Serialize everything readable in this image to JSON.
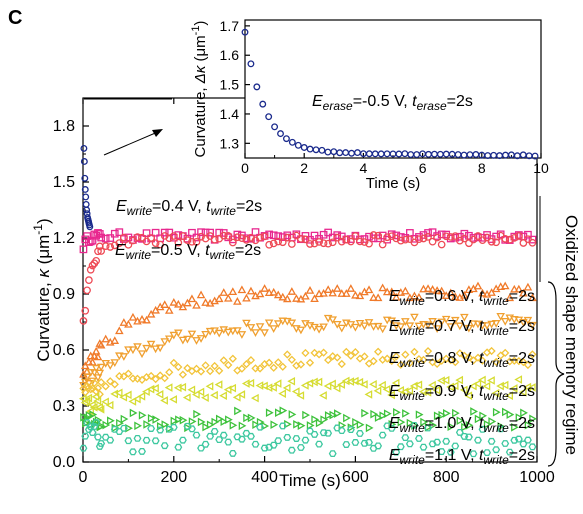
{
  "panel_label": "C",
  "chart_data": [
    {
      "type": "scatter",
      "xlabel": "Time (s)",
      "ylabel": "Curvature, κ (μm⁻¹)",
      "ylabel_parts": {
        "main": "Curvature, ",
        "symbol": "κ",
        "unit": " (μm",
        "exp": "-1",
        "close": ")"
      },
      "xlim": [
        0,
        1000
      ],
      "ylim": [
        0.0,
        1.95
      ],
      "x_ticks": [
        0,
        200,
        400,
        600,
        800,
        1000
      ],
      "x_tick_labels": [
        "0",
        "200",
        "400",
        "600",
        "800",
        "1000"
      ],
      "y_ticks": [
        0.0,
        0.3,
        0.6,
        0.9,
        1.2,
        1.5,
        1.8
      ],
      "y_tick_labels": [
        "0.0",
        "0.3",
        "0.6",
        "0.9",
        "1.2",
        "1.5",
        "1.8"
      ],
      "right_annotation": "Oxidized  shape memory regime",
      "erase_spike": {
        "color": "#1a2a8c",
        "marker": "circle",
        "x": [
          2,
          3,
          4,
          5,
          6,
          7,
          8,
          9,
          10,
          11,
          12,
          13,
          14,
          15
        ],
        "y": [
          1.68,
          1.61,
          1.52,
          1.46,
          1.42,
          1.38,
          1.35,
          1.33,
          1.31,
          1.3,
          1.29,
          1.28,
          1.27,
          1.26
        ]
      },
      "series": [
        {
          "write_label": "write",
          "E": "0.4 V",
          "t": "2s",
          "color": "#e8288f",
          "marker": "square",
          "start": 1.15,
          "plateau": 1.21,
          "tau": 8,
          "noise": 0.01
        },
        {
          "write_label": "write",
          "E": "0.5 V",
          "t": "2s",
          "color": "#ee4a55",
          "marker": "circle",
          "start": 0.72,
          "plateau": 1.19,
          "tau": 18,
          "noise": 0.012
        },
        {
          "write_label": "write",
          "E": "0.6 V",
          "t": "2s",
          "color": "#f07a2a",
          "marker": "triangle-up",
          "start": 0.48,
          "plateau": 0.91,
          "tau": 110,
          "noise": 0.015
        },
        {
          "write_label": "write",
          "E": "0.7 V",
          "t": "2s",
          "color": "#f0a030",
          "marker": "triangle-down",
          "start": 0.42,
          "plateau": 0.75,
          "tau": 160,
          "noise": 0.015
        },
        {
          "write_label": "write",
          "E": "0.8 V",
          "t": "2s",
          "color": "#f2c43a",
          "marker": "diamond",
          "start": 0.36,
          "plateau": 0.56,
          "tau": 180,
          "noise": 0.018
        },
        {
          "write_label": "write",
          "E": "0.9 V",
          "t": "2s",
          "color": "#d6dc32",
          "marker": "triangle-left",
          "start": 0.3,
          "plateau": 0.4,
          "tau": 200,
          "noise": 0.02
        },
        {
          "write_label": "write",
          "E": "1.0 V",
          "t": "2s",
          "color": "#3ec23c",
          "marker": "triangle-right",
          "start": 0.21,
          "plateau": 0.23,
          "tau": 100,
          "noise": 0.022
        },
        {
          "write_label": "write",
          "E": "1.1 V",
          "t": "2s",
          "color": "#3ec8a0",
          "marker": "hexagon",
          "start": 0.15,
          "plateau": 0.12,
          "tau": 100,
          "noise": 0.035
        }
      ]
    },
    {
      "type": "scatter",
      "xlabel": "Time (s)",
      "ylabel_parts": {
        "main": "Curvature, ",
        "symbol": "Δκ",
        "unit": " (μm",
        "exp": "-1",
        "close": ")"
      },
      "xlim": [
        0,
        10
      ],
      "ylim": [
        1.25,
        1.72
      ],
      "x_ticks": [
        0,
        2,
        4,
        6,
        8,
        10
      ],
      "x_tick_labels": [
        "0",
        "2",
        "4",
        "6",
        "8",
        "10"
      ],
      "y_ticks": [
        1.3,
        1.4,
        1.5,
        1.6,
        1.7
      ],
      "y_tick_labels": [
        "1.3",
        "1.4",
        "1.5",
        "1.6",
        "1.7"
      ],
      "annotation": {
        "E_label": "erase",
        "E": "-0.5 V",
        "t_label": "erase",
        "t": "2s"
      },
      "series": [
        {
          "color": "#1a2a8c",
          "marker": "circle",
          "start": 1.68,
          "plateau": 1.27,
          "tau": 0.65,
          "drift": -0.0012
        }
      ]
    }
  ]
}
